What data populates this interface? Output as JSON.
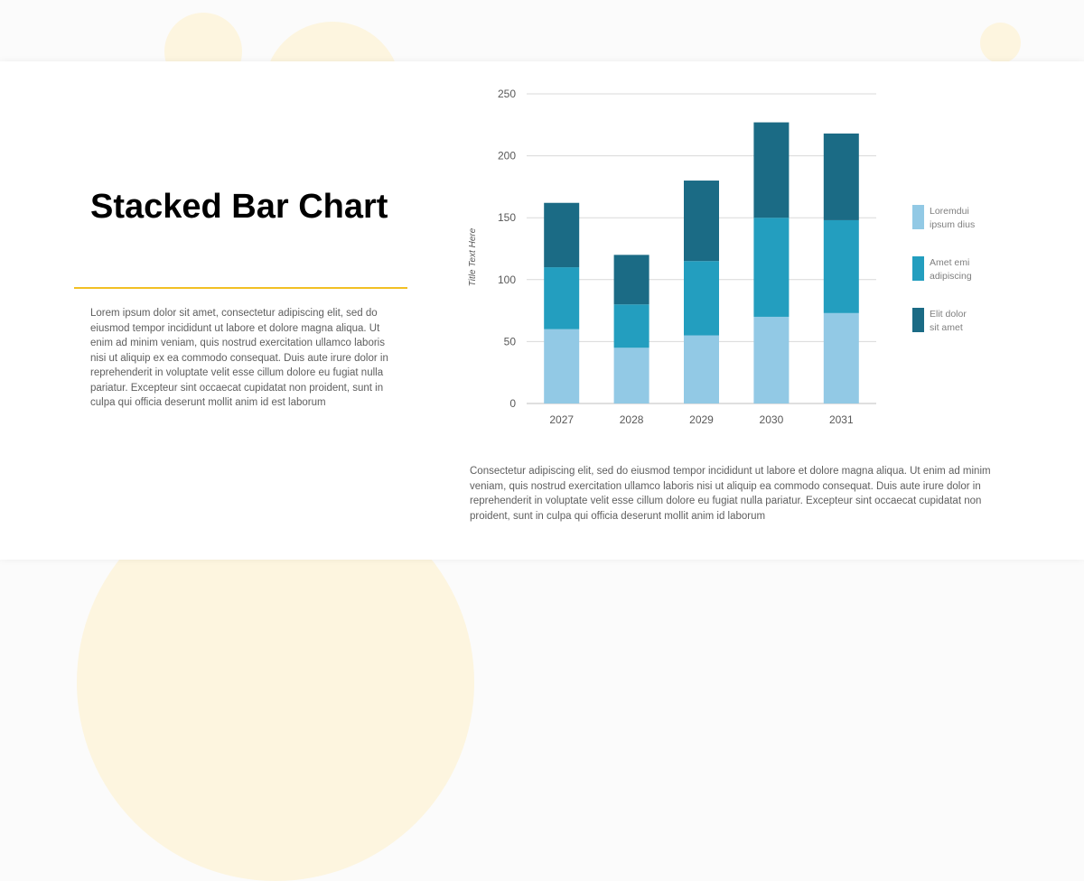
{
  "slide": {
    "title": "Stacked Bar Chart",
    "body": "Lorem ipsum dolor sit amet, consectetur adipiscing elit, sed do eiusmod tempor incididunt ut labore et dolore magna aliqua. Ut enim ad minim veniam, quis nostrud exercitation ullamco laboris nisi ut aliquip ex ea commodo consequat. Duis aute irure dolor in reprehenderit in voluptate velit esse cillum dolore eu fugiat nulla pariatur. Excepteur sint occaecat cupidatat non proident, sunt in culpa qui officia deserunt mollit anim id est laborum",
    "caption": "Consectetur adipiscing elit, sed do eiusmod tempor incididunt ut labore et dolore magna aliqua. Ut enim ad minim veniam, quis nostrud exercitation ullamco laboris nisi ut aliquip  ea commodo consequat. Duis aute irure dolor in reprehenderit in voluptate velit esse cillum dolore eu fugiat nulla pariatur. Excepteur sint occaecat cupidatat non proident, sunt in culpa qui officia deserunt mollit anim id laborum",
    "accent_color": "#f2c024",
    "decor_color": "#fdf5df"
  },
  "chart_data": {
    "type": "bar",
    "stacked": true,
    "categories": [
      "2027",
      "2028",
      "2029",
      "2030",
      "2031"
    ],
    "series": [
      {
        "name": [
          "Loremdui",
          "ipsum dius"
        ],
        "color": "#92c9e5",
        "values": [
          60,
          45,
          55,
          70,
          73
        ]
      },
      {
        "name": [
          "Amet emi",
          "adipiscing"
        ],
        "color": "#239ebf",
        "values": [
          50,
          35,
          60,
          80,
          75
        ]
      },
      {
        "name": [
          "Elit dolor",
          "sit amet"
        ],
        "color": "#1b6b85",
        "values": [
          52,
          40,
          65,
          77,
          70
        ]
      }
    ],
    "title": "",
    "xlabel": "",
    "ylabel": "Title Text Here",
    "ylim": [
      0,
      250
    ],
    "yticks": [
      0,
      50,
      100,
      150,
      200,
      250
    ],
    "grid": true,
    "legend_position": "right"
  }
}
